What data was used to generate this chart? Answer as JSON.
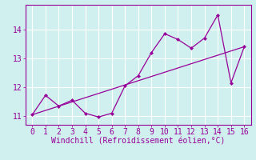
{
  "xlabel": "Windchill (Refroidissement éolien,°C)",
  "x_data": [
    0,
    1,
    2,
    3,
    4,
    5,
    6,
    7,
    8,
    9,
    10,
    11,
    12,
    13,
    14,
    15,
    16
  ],
  "y_data": [
    11.05,
    11.72,
    11.35,
    11.55,
    11.1,
    10.97,
    11.1,
    12.05,
    12.4,
    13.2,
    13.85,
    13.65,
    13.35,
    13.7,
    14.5,
    12.15,
    13.4
  ],
  "trend_x": [
    0,
    16
  ],
  "trend_y": [
    11.05,
    13.4
  ],
  "line_color": "#990099",
  "bg_color": "#cff0ee",
  "grid_color": "#ffffff",
  "ylim": [
    10.7,
    14.85
  ],
  "xlim": [
    -0.5,
    16.5
  ],
  "yticks": [
    11,
    12,
    13,
    14
  ],
  "xticks": [
    0,
    1,
    2,
    3,
    4,
    5,
    6,
    7,
    8,
    9,
    10,
    11,
    12,
    13,
    14,
    15,
    16
  ],
  "tick_fontsize": 7,
  "xlabel_fontsize": 7
}
